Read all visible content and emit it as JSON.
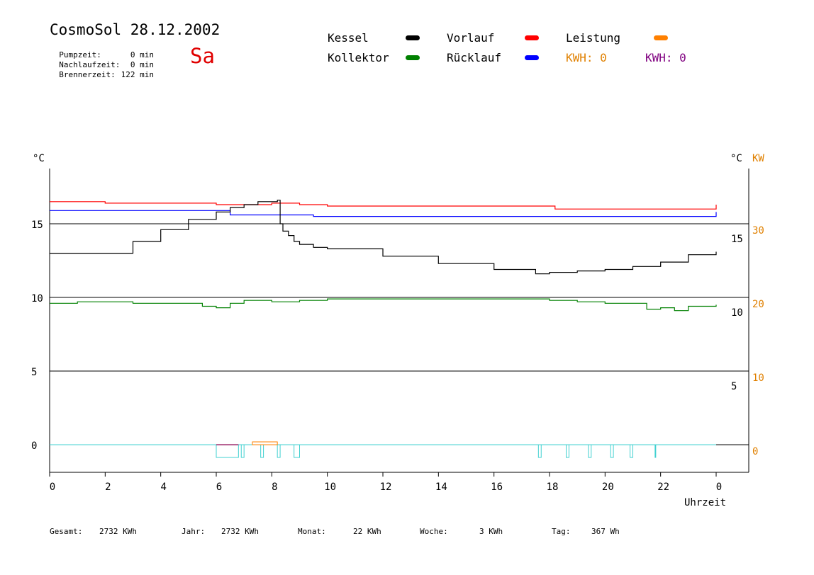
{
  "header": {
    "title": "CosmoSol 28.12.2002",
    "weekday": "Sa",
    "stats": [
      {
        "label": "Pumpzeit:",
        "value": "0 min"
      },
      {
        "label": "Nachlaufzeit:",
        "value": "0 min"
      },
      {
        "label": "Brennerzeit:",
        "value": "122 min"
      }
    ]
  },
  "legend": {
    "items": [
      {
        "label": "Kessel",
        "color": "#000000"
      },
      {
        "label": "Kollektor",
        "color": "#008000"
      },
      {
        "label": "Vorlauf",
        "color": "#ff0000"
      },
      {
        "label": "Rücklauf",
        "color": "#0000ff"
      },
      {
        "label": "Leistung",
        "color": "#ff8000"
      }
    ],
    "kwh": [
      {
        "text": "KWH: 0",
        "color": "#e08000"
      },
      {
        "text": "KWH: 0",
        "color": "#800080"
      }
    ]
  },
  "footer": {
    "items": [
      {
        "label": "Gesamt:",
        "value": "2732 KWh"
      },
      {
        "label": "Jahr:",
        "value": "2732 KWh"
      },
      {
        "label": "Monat:",
        "value": "22 KWh"
      },
      {
        "label": "Woche:",
        "value": "3 KWh"
      },
      {
        "label": "Tag:",
        "value": "367 Wh"
      }
    ]
  },
  "chart_data": {
    "type": "line",
    "xlabel": "Uhrzeit",
    "x_ticks": [
      "0",
      "2",
      "4",
      "6",
      "8",
      "10",
      "12",
      "14",
      "16",
      "18",
      "20",
      "22",
      "0"
    ],
    "xlim": [
      0,
      24
    ],
    "ylabel_left": "°C",
    "ylabel_right": "°C",
    "ylabel_right2": "KW",
    "y_ticks_left": [
      "15",
      "10",
      "5",
      "0"
    ],
    "y_ticks_right": [
      "15",
      "10",
      "5"
    ],
    "y_ticks_kw": [
      "30",
      "20",
      "10",
      "0"
    ],
    "series": [
      {
        "name": "Vorlauf",
        "color": "#ff0000",
        "x": [
          0,
          2,
          4,
          6,
          8,
          9,
          10,
          17.5,
          18.2,
          24
        ],
        "y": [
          16.5,
          16.4,
          16.4,
          16.3,
          16.4,
          16.3,
          16.2,
          16.2,
          16.0,
          16.3
        ]
      },
      {
        "name": "Rücklauf",
        "color": "#0000ff",
        "x": [
          0,
          4,
          6.5,
          9.5,
          17.5,
          24
        ],
        "y": [
          15.9,
          15.9,
          15.6,
          15.5,
          15.5,
          15.8
        ]
      },
      {
        "name": "Kessel",
        "color": "#000000",
        "x": [
          0,
          2,
          3,
          4,
          5,
          6,
          6.5,
          7,
          7.5,
          8.2,
          8.3,
          8.4,
          8.6,
          8.8,
          9,
          9.5,
          10,
          12,
          14,
          16,
          17.5,
          18,
          19,
          20,
          21,
          22,
          23,
          24
        ],
        "y": [
          13.0,
          13.0,
          13.8,
          14.6,
          15.3,
          15.8,
          16.1,
          16.3,
          16.5,
          16.6,
          15.0,
          14.5,
          14.2,
          13.8,
          13.6,
          13.4,
          13.3,
          12.8,
          12.3,
          11.9,
          11.6,
          11.7,
          11.8,
          11.9,
          12.1,
          12.4,
          12.9,
          13.1
        ]
      },
      {
        "name": "Kollektor",
        "color": "#008000",
        "x": [
          0,
          1,
          2,
          3,
          4,
          5,
          5.5,
          6,
          6.5,
          7,
          8,
          9,
          10,
          12,
          14,
          16,
          17.5,
          18,
          19,
          20,
          21,
          21.5,
          22,
          22.5,
          23,
          24
        ],
        "y": [
          9.6,
          9.7,
          9.7,
          9.6,
          9.6,
          9.6,
          9.4,
          9.3,
          9.6,
          9.8,
          9.7,
          9.8,
          9.9,
          9.9,
          9.9,
          9.9,
          9.9,
          9.8,
          9.7,
          9.6,
          9.6,
          9.2,
          9.3,
          9.1,
          9.4,
          9.5
        ]
      }
    ]
  }
}
